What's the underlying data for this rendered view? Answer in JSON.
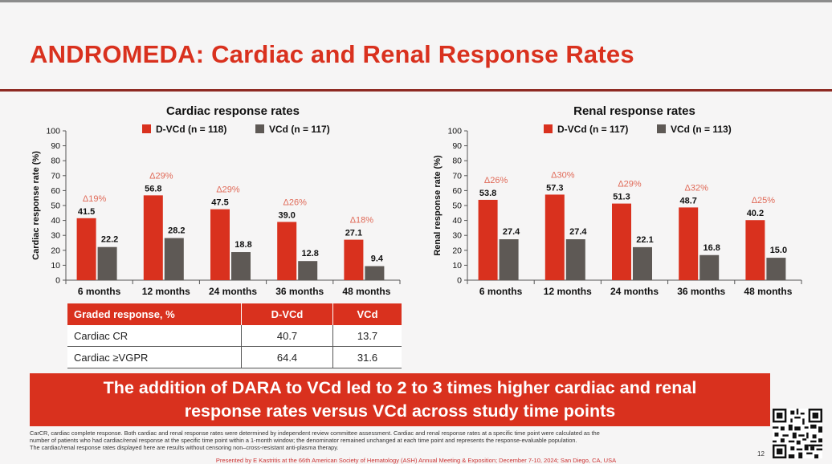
{
  "slide": {
    "title": "ANDROMEDA: Cardiac and Renal Response Rates",
    "colors": {
      "accent": "#d9311e",
      "dvcd": "#d9311e",
      "vcd": "#5e5955",
      "delta": "#e06a58"
    },
    "page_number": "12",
    "banner_line1": "The addition of DARA to VCd led to 2 to 3 times higher cardiac and renal",
    "banner_line2": "response rates versus VCd across study time points",
    "footnote_1": "CarCR, cardiac complete response. Both cardiac and renal response rates were determined by independent review committee assessment. Cardiac and renal response rates at a specific time point were calculated as the",
    "footnote_2": "number of patients who had cardiac/renal response at the specific time point within a 1-month window; the denominator remained unchanged at each time point and represents the response-evaluable population.",
    "footnote_3": "The cardiac/renal response rates displayed here are results without censoring non–cross-resistant anti-plasma therapy.",
    "presented_by": "Presented by E Kastritis at the 66th American Society of Hematology (ASH) Annual Meeting & Exposition; December 7-10, 2024; San Diego, CA, USA",
    "qr_icon": "qr-code-icon"
  },
  "graded_table": {
    "headers": [
      "Graded response, %",
      "D-VCd",
      "VCd"
    ],
    "rows": [
      [
        "Cardiac CR",
        "40.7",
        "13.7"
      ],
      [
        "Cardiac ≥VGPR",
        "64.4",
        "31.6"
      ]
    ]
  },
  "chart_data": [
    {
      "type": "bar",
      "title": "Cardiac response rates",
      "ylabel": "Cardiac response rate (%)",
      "xlabel": "",
      "ylim": [
        0,
        100
      ],
      "yticks": [
        0,
        10,
        20,
        30,
        40,
        50,
        60,
        70,
        80,
        90,
        100
      ],
      "categories": [
        "6 months",
        "12 months",
        "24 months",
        "36 months",
        "48 months"
      ],
      "series": [
        {
          "name": "D-VCd (n = 118)",
          "values": [
            41.5,
            56.8,
            47.5,
            39.0,
            27.1
          ],
          "labels": [
            "41.5",
            "56.8",
            "47.5",
            "39.0",
            "27.1"
          ]
        },
        {
          "name": "VCd (n = 117)",
          "values": [
            22.2,
            28.2,
            18.8,
            12.8,
            9.4
          ],
          "labels": [
            "22.2",
            "28.2",
            "18.8",
            "12.8",
            "9.4"
          ]
        }
      ],
      "deltas": [
        "Δ19%",
        "Δ29%",
        "Δ29%",
        "Δ26%",
        "Δ18%"
      ],
      "grid": false,
      "legend": "top"
    },
    {
      "type": "bar",
      "title": "Renal response rates",
      "ylabel": "Renal response rate (%)",
      "xlabel": "",
      "ylim": [
        0,
        100
      ],
      "yticks": [
        0,
        10,
        20,
        30,
        40,
        50,
        60,
        70,
        80,
        90,
        100
      ],
      "categories": [
        "6 months",
        "12 months",
        "24 months",
        "36 months",
        "48 months"
      ],
      "series": [
        {
          "name": "D-VCd (n = 117)",
          "values": [
            53.8,
            57.3,
            51.3,
            48.7,
            40.2
          ],
          "labels": [
            "53.8",
            "57.3",
            "51.3",
            "48.7",
            "40.2"
          ]
        },
        {
          "name": "VCd (n = 113)",
          "values": [
            27.4,
            27.4,
            22.1,
            16.8,
            15.0
          ],
          "labels": [
            "27.4",
            "27.4",
            "22.1",
            "16.8",
            "15.0"
          ]
        }
      ],
      "deltas": [
        "Δ26%",
        "Δ30%",
        "Δ29%",
        "Δ32%",
        "Δ25%"
      ],
      "grid": false,
      "legend": "top"
    }
  ]
}
